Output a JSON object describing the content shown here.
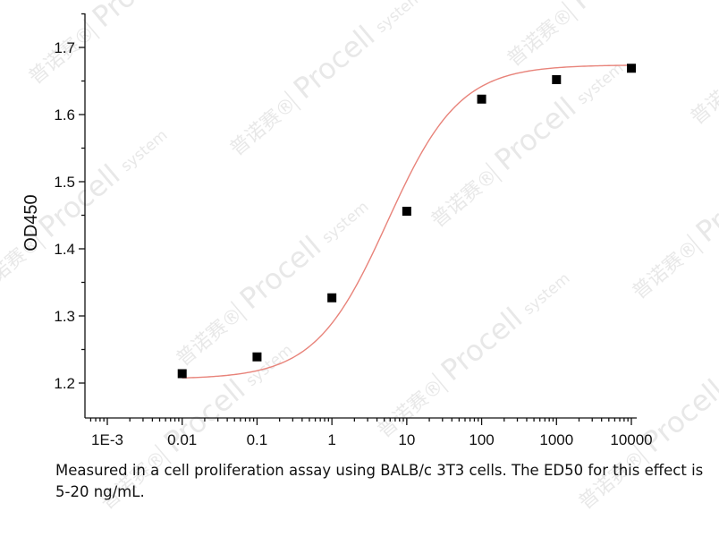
{
  "chart_data": {
    "type": "scatter",
    "title": "",
    "xlabel": "",
    "ylabel": "OD450",
    "x_scale": "log",
    "xlim": [
      0.001,
      10000
    ],
    "ylim": [
      1.18,
      1.74
    ],
    "x_ticks": [
      0.001,
      0.01,
      0.1,
      1,
      10,
      100,
      1000,
      10000
    ],
    "x_tick_labels": [
      "1E-3",
      "0.01",
      "0.1",
      "1",
      "10",
      "100",
      "1000",
      "10000"
    ],
    "y_ticks": [
      1.2,
      1.3,
      1.4,
      1.5,
      1.6,
      1.7
    ],
    "y_tick_labels": [
      "1.2",
      "1.3",
      "1.4",
      "1.5",
      "1.6",
      "1.7"
    ],
    "grid": false,
    "series": [
      {
        "marker": "square",
        "color": "#000000",
        "x": [
          0.01,
          0.1,
          1,
          10,
          100,
          1000,
          10000
        ],
        "y": [
          1.214,
          1.239,
          1.327,
          1.456,
          1.623,
          1.652,
          1.669
        ]
      }
    ],
    "fit_curve": {
      "type": "four-parameter-logistic",
      "color": "#e8837a",
      "bottom": 1.206,
      "top": 1.674,
      "ec50": 5.5,
      "hill": 0.9
    }
  },
  "caption": "Measured in a cell proliferation assay using BALB/c 3T3 cells. The ED50 for this effect is 5-20 ng/mL.",
  "watermark": {
    "brand": "Procell",
    "suffix": "system",
    "chinese": "普诺赛®",
    "color": "#d6d6d6"
  }
}
